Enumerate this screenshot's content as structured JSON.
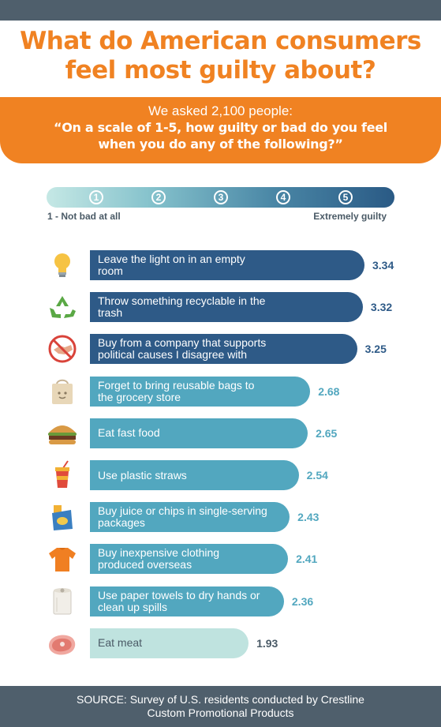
{
  "title": {
    "line1": "What do American consumers",
    "line2": "feel most guilty about?"
  },
  "question": {
    "intro": "We asked 2,100 people:",
    "line1": "“On a scale of 1-5, how guilty or bad do you feel",
    "line2": "when you do any of the following?”"
  },
  "scale": {
    "numbers": [
      "1",
      "2",
      "3",
      "4",
      "5"
    ],
    "left_label": "1 - Not bad at all",
    "right_label": "Extremely guilty"
  },
  "colors": {
    "dark": "#2e5a87",
    "mid": "#52a7bf",
    "light": "#bfe3df",
    "orange": "#f08222"
  },
  "chart_data": {
    "type": "bar",
    "orientation": "horizontal",
    "xlim": [
      0,
      5
    ],
    "items": [
      {
        "lines": [
          "Leave the light on in an empty",
          "room"
        ],
        "value": 3.34,
        "icon": "lightbulb-icon"
      },
      {
        "lines": [
          "Throw something recyclable in the",
          "trash"
        ],
        "value": 3.32,
        "icon": "recycle-icon"
      },
      {
        "lines": [
          "Buy from a company that supports",
          "political causes I disagree with"
        ],
        "value": 3.25,
        "icon": "no-handshake-icon"
      },
      {
        "lines": [
          "Forget to bring reusable bags to",
          "the grocery store"
        ],
        "value": 2.68,
        "icon": "reusable-bag-icon"
      },
      {
        "lines": [
          "Eat fast food"
        ],
        "value": 2.65,
        "icon": "burger-icon"
      },
      {
        "lines": [
          "Use plastic straws"
        ],
        "value": 2.54,
        "icon": "straw-cup-icon"
      },
      {
        "lines": [
          "Buy juice or chips in single-serving",
          "packages"
        ],
        "value": 2.43,
        "icon": "snack-pack-icon"
      },
      {
        "lines": [
          "Buy inexpensive clothing",
          "produced overseas"
        ],
        "value": 2.41,
        "icon": "tshirt-icon"
      },
      {
        "lines": [
          "Use paper towels to dry hands or",
          "clean up spills"
        ],
        "value": 2.36,
        "icon": "paper-towel-icon"
      },
      {
        "lines": [
          "Eat meat"
        ],
        "value": 1.93,
        "icon": "steak-icon"
      }
    ]
  },
  "footer": {
    "line1": "SOURCE: Survey of U.S. residents conducted by Crestline",
    "line2": "Custom Promotional Products"
  }
}
